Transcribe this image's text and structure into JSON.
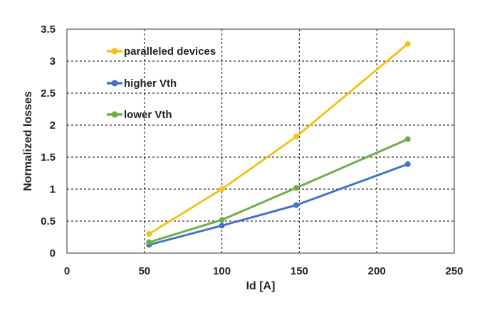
{
  "chart_data": {
    "type": "line",
    "title": "",
    "xlabel": "Id [A]",
    "ylabel": "Normalized losses",
    "xlim": [
      0,
      250
    ],
    "ylim": [
      0,
      3.5
    ],
    "xticks": [
      0,
      50,
      100,
      150,
      200,
      250
    ],
    "yticks": [
      0,
      0.5,
      1,
      1.5,
      2,
      2.5,
      3,
      3.5
    ],
    "xtick_labels": [
      "0",
      "50",
      "100",
      "150",
      "200",
      "250"
    ],
    "ytick_labels": [
      "0",
      "0.5",
      "1",
      "1.5",
      "2",
      "2.5",
      "3",
      "3.5"
    ],
    "grid": true,
    "legend_position": "top-left",
    "series": [
      {
        "name": "paralleled devices",
        "color": "#f5c21b",
        "x": [
          53,
          100,
          148,
          220
        ],
        "y": [
          0.3,
          1.0,
          1.82,
          3.27
        ]
      },
      {
        "name": "higher Vth",
        "color": "#4472c4",
        "x": [
          53,
          100,
          148,
          220
        ],
        "y": [
          0.13,
          0.43,
          0.75,
          1.39
        ]
      },
      {
        "name": "lower Vth",
        "color": "#70ad47",
        "x": [
          53,
          100,
          148,
          220
        ],
        "y": [
          0.17,
          0.52,
          1.02,
          1.78
        ]
      }
    ]
  }
}
